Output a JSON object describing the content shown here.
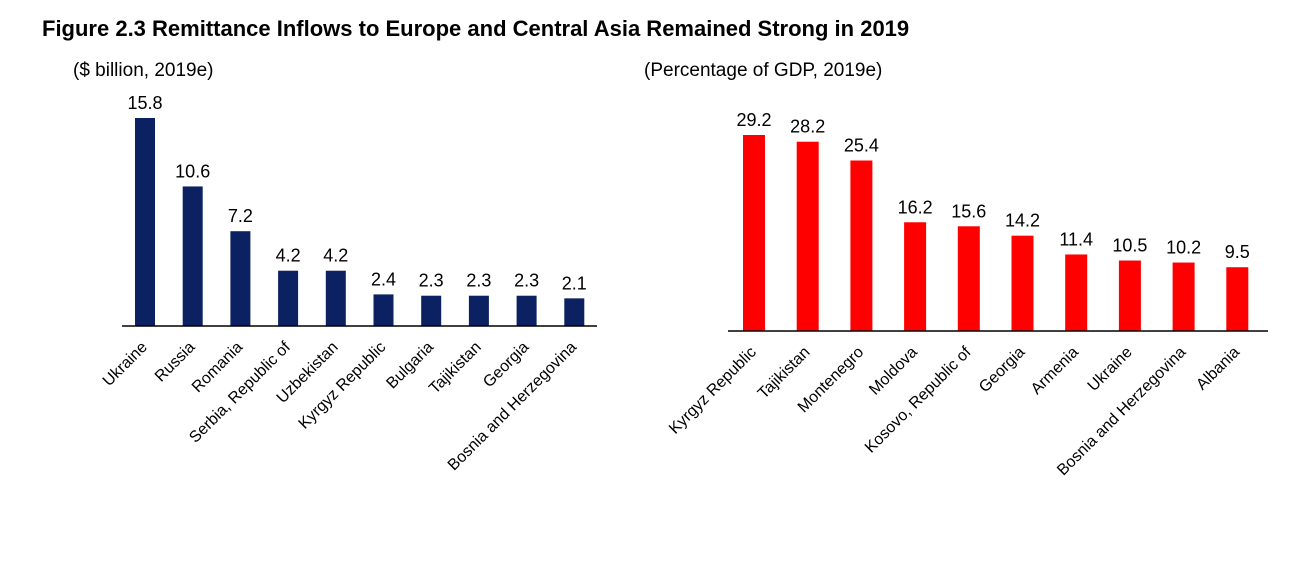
{
  "figure_title": "Figure 2.3 Remittance Inflows to Europe and Central Asia Remained Strong in 2019",
  "chart_data": [
    {
      "type": "bar",
      "title": "($ billion, 2019e)",
      "color": "#0b2161",
      "categories": [
        "Ukraine",
        "Russia",
        "Romania",
        "Serbia, Republic of",
        "Uzbekistan",
        "Kyrgyz Republic",
        "Bulgaria",
        "Tajikistan",
        "Georgia",
        "Bosnia and Herzegovina"
      ],
      "values": [
        15.8,
        10.6,
        7.2,
        4.2,
        4.2,
        2.4,
        2.3,
        2.3,
        2.3,
        2.1
      ],
      "labels": [
        "15.8",
        "10.6",
        "7.2",
        "4.2",
        "4.2",
        "2.4",
        "2.3",
        "2.3",
        "2.3",
        "2.1"
      ],
      "ylim": [
        0,
        16
      ],
      "grid": false,
      "legend": "none"
    },
    {
      "type": "bar",
      "title": "(Percentage of GDP, 2019e)",
      "color": "#ff0000",
      "categories": [
        "Kyrgyz Republic",
        "Tajikistan",
        "Montenegro",
        "Moldova",
        "Kosovo, Republic of",
        "Georgia",
        "Armenia",
        "Ukraine",
        "Bosnia and Herzegovina",
        "Albania"
      ],
      "values": [
        29.2,
        28.2,
        25.4,
        16.2,
        15.6,
        14.2,
        11.4,
        10.5,
        10.2,
        9.5
      ],
      "labels": [
        "29.2",
        "28.2",
        "25.4",
        "16.2",
        "15.6",
        "14.2",
        "11.4",
        "10.5",
        "10.2",
        "9.5"
      ],
      "ylim": [
        0,
        30
      ],
      "grid": false,
      "legend": "none"
    }
  ]
}
